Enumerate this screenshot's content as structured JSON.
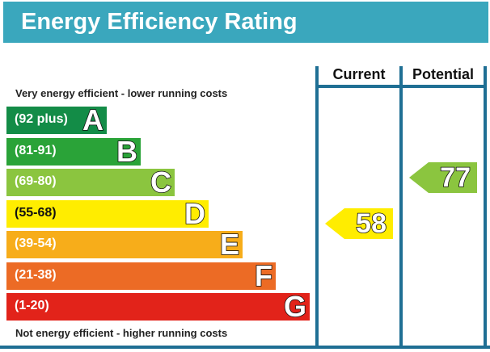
{
  "header": {
    "title": "Energy Efficiency Rating"
  },
  "notes": {
    "top": "Very energy efficient - lower running costs",
    "bottom": "Not energy efficient - higher running costs"
  },
  "columns": {
    "current": "Current",
    "potential": "Potential"
  },
  "colors": {
    "header": "#3aa7bd",
    "A": "#138c47",
    "B": "#2aa338",
    "C": "#8bc53f",
    "D": "#ffed00",
    "E": "#f7ad1a",
    "F": "#ec6b25",
    "G": "#e2231a",
    "frame": "#1f6f94"
  },
  "chart_data": {
    "type": "bar",
    "title": "Energy Efficiency Rating",
    "categories": [
      "A",
      "B",
      "C",
      "D",
      "E",
      "F",
      "G"
    ],
    "bands": [
      {
        "letter": "A",
        "range": "(92 plus)",
        "min": 92,
        "max": 100
      },
      {
        "letter": "B",
        "range": "(81-91)",
        "min": 81,
        "max": 91
      },
      {
        "letter": "C",
        "range": "(69-80)",
        "min": 69,
        "max": 80
      },
      {
        "letter": "D",
        "range": "(55-68)",
        "min": 55,
        "max": 68
      },
      {
        "letter": "E",
        "range": "(39-54)",
        "min": 39,
        "max": 54
      },
      {
        "letter": "F",
        "range": "(21-38)",
        "min": 21,
        "max": 38
      },
      {
        "letter": "G",
        "range": "(1-20)",
        "min": 1,
        "max": 20
      }
    ],
    "current": {
      "value": 58,
      "band": "D"
    },
    "potential": {
      "value": 77,
      "band": "C"
    }
  }
}
